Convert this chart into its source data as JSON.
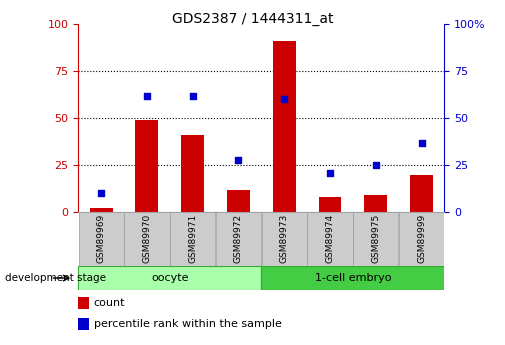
{
  "title": "GDS2387 / 1444311_at",
  "samples": [
    "GSM89969",
    "GSM89970",
    "GSM89971",
    "GSM89972",
    "GSM89973",
    "GSM89974",
    "GSM89975",
    "GSM89999"
  ],
  "count": [
    2,
    49,
    41,
    12,
    91,
    8,
    9,
    20
  ],
  "percentile": [
    10,
    62,
    62,
    28,
    60,
    21,
    25,
    37
  ],
  "bar_color": "#CC0000",
  "dot_color": "#0000CC",
  "bar_width": 0.5,
  "ylim": [
    0,
    100
  ],
  "yticks": [
    0,
    25,
    50,
    75,
    100
  ],
  "left_axis_color": "#CC0000",
  "right_axis_color": "#0000CC",
  "legend_count_label": "count",
  "legend_pct_label": "percentile rank within the sample",
  "dev_stage_label": "development stage",
  "group_labels": [
    "oocyte",
    "1-cell embryo"
  ],
  "group_split": 4,
  "oocyte_color": "#AAFFAA",
  "embryo_color": "#44CC44",
  "xtick_bg": "#CCCCCC",
  "xtick_border": "#999999"
}
